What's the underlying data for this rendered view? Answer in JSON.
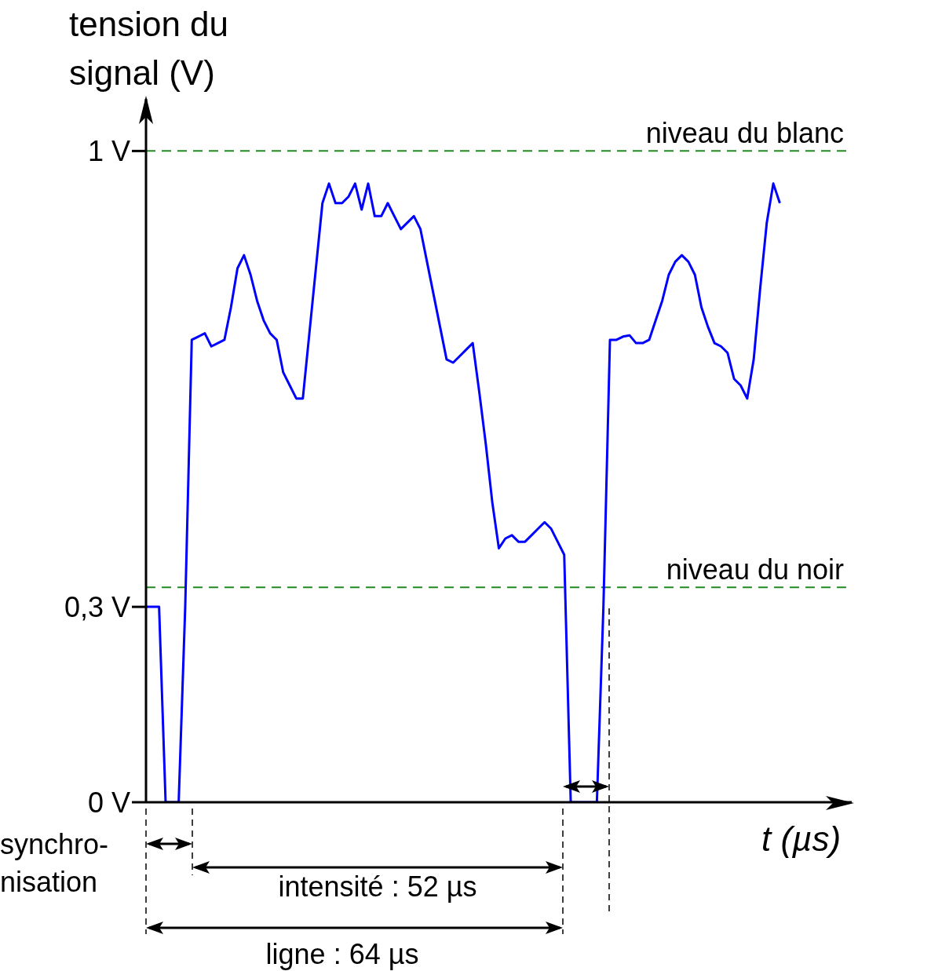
{
  "chart_data": {
    "type": "line",
    "ylabel": "tension du signal (V)",
    "xlabel": "t (µs)",
    "categories": [
      null,
      null,
      null,
      null,
      null,
      null,
      null,
      null,
      null,
      null,
      null,
      null,
      null,
      null,
      null,
      null,
      null,
      null,
      null,
      null,
      null,
      null,
      null,
      null,
      null,
      null,
      null,
      null,
      null,
      null,
      null,
      null,
      null,
      null,
      null,
      null,
      null,
      null,
      null,
      null,
      null,
      null,
      null,
      null,
      null,
      null,
      null,
      null,
      null,
      null,
      null,
      null,
      null,
      null,
      null,
      null,
      null,
      null,
      null,
      null,
      null,
      null,
      null,
      null,
      null,
      null,
      null,
      null,
      null,
      null,
      null,
      null,
      null,
      null,
      null,
      null,
      null,
      null,
      null,
      null,
      null,
      null,
      null,
      null,
      null,
      null,
      null,
      null,
      null,
      null,
      null,
      null,
      null,
      null,
      null,
      null,
      null,
      null,
      null,
      null,
      null,
      null,
      null,
      null,
      null,
      null,
      null,
      null,
      null
    ],
    "ylim": [
      0,
      1.08
    ],
    "yticks": [
      {
        "value": 0,
        "label": "0 V"
      },
      {
        "value": 0.3,
        "label": "0,3 V"
      },
      {
        "value": 1,
        "label": "1 V"
      }
    ],
    "tick_labels": "y",
    "marker": "none",
    "line_style": "solid",
    "series": [
      {
        "color": "#0000ff",
        "values": [
          0.3,
          0.3,
          0.3,
          0,
          0,
          0,
          0.3,
          0.71,
          0.715,
          0.72,
          0.7,
          0.705,
          0.71,
          0.76,
          0.82,
          0.84,
          0.81,
          0.77,
          0.74,
          0.72,
          0.71,
          0.66,
          0.64,
          0.62,
          0.62,
          0.72,
          0.82,
          0.92,
          0.95,
          0.92,
          0.92,
          0.93,
          0.95,
          0.91,
          0.95,
          0.9,
          0.9,
          0.92,
          0.9,
          0.88,
          0.89,
          0.9,
          0.88,
          0.83,
          0.78,
          0.73,
          0.68,
          0.675,
          0.685,
          0.695,
          0.705,
          0.63,
          0.55,
          0.46,
          0.39,
          0.405,
          0.41,
          0.4,
          0.4,
          0.41,
          0.42,
          0.43,
          0.42,
          0.4,
          0.38,
          0,
          0,
          0,
          0,
          0,
          0.3,
          0.71,
          0.71,
          0.715,
          0.717,
          0.705,
          0.705,
          0.71,
          0.74,
          0.77,
          0.81,
          0.83,
          0.84,
          0.83,
          0.81,
          0.76,
          0.73,
          0.705,
          0.7,
          0.69,
          0.65,
          0.64,
          0.62,
          0.68,
          0.79,
          0.89,
          0.95,
          0.92,
          null,
          null,
          null,
          null,
          null,
          null,
          null,
          null,
          null,
          null,
          null
        ]
      }
    ],
    "ref_lines": [
      {
        "axis": "y",
        "value": 1,
        "label": "niveau du blanc",
        "color": "#228b22",
        "line_style": "dashed"
      },
      {
        "axis": "y",
        "value": 0.33,
        "label": "niveau du noir",
        "color": "#228b22",
        "line_style": "dashed"
      }
    ],
    "annotations": [
      "synchro-nisation",
      "intensité : 52 µs",
      "ligne : 64 µs"
    ]
  }
}
